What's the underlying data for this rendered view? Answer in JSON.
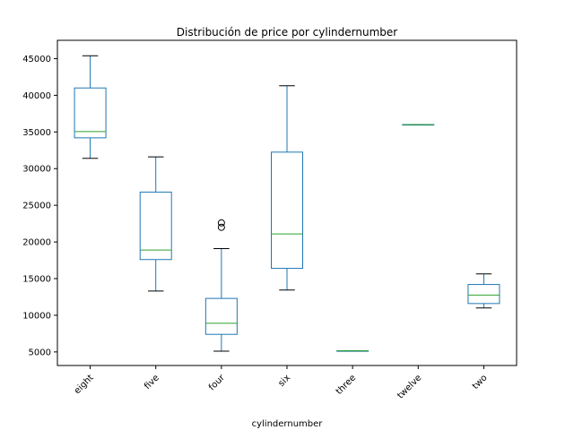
{
  "chart_data": {
    "type": "box",
    "title": "Distribución de price por cylindernumber",
    "xlabel": "cylindernumber",
    "ylabel": "",
    "ylim": [
      3150,
      47500
    ],
    "yticks": [
      5000,
      10000,
      15000,
      20000,
      25000,
      30000,
      35000,
      40000,
      45000
    ],
    "grid": false,
    "colors": {
      "box": "#1f77b4",
      "median": "#2ca02c",
      "whisker_cap": "#000000",
      "outlier": "#000000"
    },
    "categories": [
      "eight",
      "five",
      "four",
      "six",
      "three",
      "twelve",
      "two"
    ],
    "boxes": [
      {
        "category": "eight",
        "whislo": 31400,
        "q1": 34200,
        "med": 35050,
        "q3": 41000,
        "whishi": 45400,
        "fliers": []
      },
      {
        "category": "five",
        "whislo": 13300,
        "q1": 17600,
        "med": 18900,
        "q3": 26800,
        "whishi": 31600,
        "fliers": []
      },
      {
        "category": "four",
        "whislo": 5100,
        "q1": 7400,
        "med": 8900,
        "q3": 12300,
        "whishi": 19100,
        "fliers": [
          22000,
          22600
        ]
      },
      {
        "category": "six",
        "whislo": 13450,
        "q1": 16400,
        "med": 21100,
        "q3": 32250,
        "whishi": 41300,
        "fliers": []
      },
      {
        "category": "three",
        "whislo": 5150,
        "q1": 5150,
        "med": 5150,
        "q3": 5150,
        "whishi": 5150,
        "fliers": []
      },
      {
        "category": "twelve",
        "whislo": 36000,
        "q1": 36000,
        "med": 36000,
        "q3": 36000,
        "whishi": 36000,
        "fliers": []
      },
      {
        "category": "two",
        "whislo": 11000,
        "q1": 11600,
        "med": 12750,
        "q3": 14200,
        "whishi": 15650,
        "fliers": []
      }
    ]
  }
}
